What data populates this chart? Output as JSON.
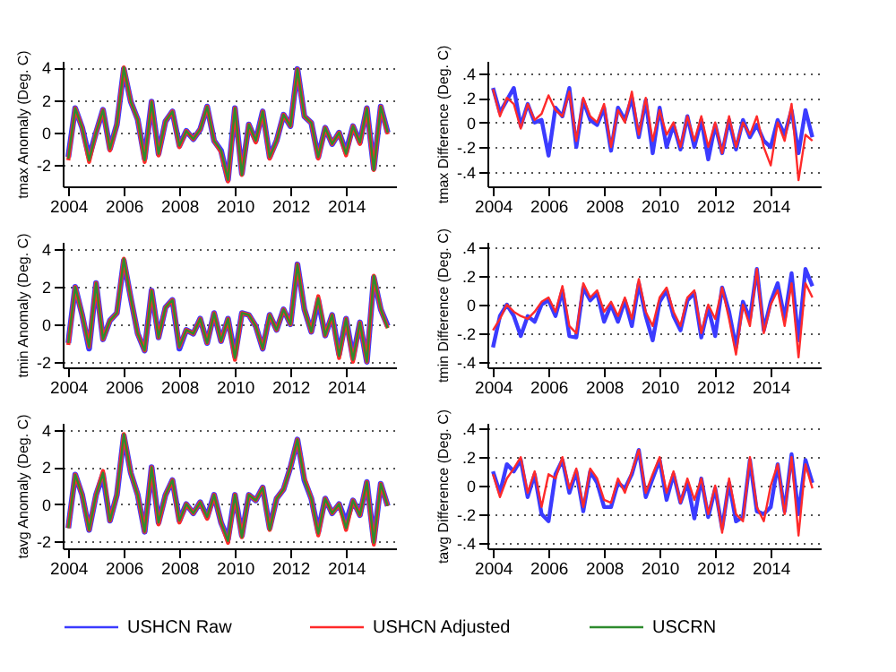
{
  "chart_data": [
    {
      "type": "line",
      "ylabel": "tmax Anomaly (Deg. C)",
      "x": [
        2004,
        2004.25,
        2004.5,
        2004.75,
        2005,
        2005.25,
        2005.5,
        2005.75,
        2006,
        2006.25,
        2006.5,
        2006.75,
        2007,
        2007.25,
        2007.5,
        2007.75,
        2008,
        2008.25,
        2008.5,
        2008.75,
        2009,
        2009.25,
        2009.5,
        2009.75,
        2010,
        2010.25,
        2010.5,
        2010.75,
        2011,
        2011.25,
        2011.5,
        2011.75,
        2012,
        2012.25,
        2012.5,
        2012.75,
        2013,
        2013.25,
        2013.5,
        2013.75,
        2014,
        2014.25,
        2014.5,
        2014.75,
        2015,
        2015.25,
        2015.5
      ],
      "xlim": [
        2003.8,
        2015.8
      ],
      "xticks": [
        2004,
        2006,
        2008,
        2010,
        2012,
        2014
      ],
      "ylim": [
        -3.3,
        4.4
      ],
      "yticks": [
        -2,
        0,
        2,
        4
      ],
      "grid": "y",
      "legend": "bottom",
      "series": [
        {
          "name": "USHCN Raw",
          "color": "#3b3bff",
          "values": [
            -1.5,
            1.5,
            0.3,
            -1.5,
            0.0,
            1.4,
            -1.0,
            0.5,
            3.9,
            1.9,
            0.8,
            -1.6,
            1.9,
            -1.3,
            0.7,
            1.3,
            -0.8,
            0.1,
            -0.4,
            0.2,
            1.6,
            -0.5,
            -1.1,
            -2.9,
            1.5,
            -2.5,
            0.5,
            -0.5,
            1.3,
            -1.5,
            -0.5,
            1.1,
            0.4,
            3.9,
            1.0,
            0.6,
            -1.5,
            0.3,
            -0.7,
            0.0,
            -1.2,
            0.4,
            -0.6,
            1.5,
            -2.2,
            1.6,
            0.0
          ]
        },
        {
          "name": "USHCN Adjusted",
          "color": "#ff2a2a",
          "values": [
            -1.7,
            1.5,
            0.3,
            -1.8,
            0.0,
            1.4,
            -1.1,
            0.5,
            4.0,
            1.9,
            0.8,
            -1.8,
            1.9,
            -1.4,
            0.7,
            1.3,
            -0.9,
            0.1,
            -0.4,
            0.2,
            1.6,
            -0.5,
            -1.2,
            -3.0,
            1.5,
            -2.6,
            0.5,
            -0.6,
            1.3,
            -1.6,
            -0.5,
            1.1,
            0.4,
            3.9,
            1.0,
            0.6,
            -1.6,
            0.3,
            -0.7,
            0.0,
            -1.4,
            0.4,
            -0.7,
            1.5,
            -2.3,
            1.6,
            -0.1
          ]
        },
        {
          "name": "USCRN",
          "color": "#2e8b2e",
          "values": [
            -1.6,
            1.5,
            0.3,
            -1.7,
            0.0,
            1.4,
            -1.0,
            0.5,
            4.0,
            1.9,
            0.8,
            -1.7,
            1.9,
            -1.3,
            0.7,
            1.3,
            -0.8,
            0.1,
            -0.4,
            0.2,
            1.6,
            -0.5,
            -1.1,
            -2.9,
            1.5,
            -2.6,
            0.5,
            -0.5,
            1.3,
            -1.5,
            -0.5,
            1.1,
            0.4,
            3.9,
            1.0,
            0.6,
            -1.5,
            0.3,
            -0.7,
            0.0,
            -1.3,
            0.4,
            -0.6,
            1.5,
            -2.3,
            1.6,
            0.0
          ]
        }
      ]
    },
    {
      "type": "line",
      "ylabel": "tmax Difference (Deg. C)",
      "x": [
        2004,
        2004.25,
        2004.5,
        2004.75,
        2005,
        2005.25,
        2005.5,
        2005.75,
        2006,
        2006.25,
        2006.5,
        2006.75,
        2007,
        2007.25,
        2007.5,
        2007.75,
        2008,
        2008.25,
        2008.5,
        2008.75,
        2009,
        2009.25,
        2009.5,
        2009.75,
        2010,
        2010.25,
        2010.5,
        2010.75,
        2011,
        2011.25,
        2011.5,
        2011.75,
        2012,
        2012.25,
        2012.5,
        2012.75,
        2013,
        2013.25,
        2013.5,
        2013.75,
        2014,
        2014.25,
        2014.5,
        2014.75,
        2015,
        2015.25,
        2015.5
      ],
      "xlim": [
        2003.8,
        2015.8
      ],
      "xticks": [
        2004,
        2006,
        2008,
        2010,
        2012,
        2014
      ],
      "ylim": [
        -0.52,
        0.5
      ],
      "yticks": [
        {
          "value": -0.4,
          "label": "-.4"
        },
        {
          "value": -0.2,
          "label": "-.2"
        },
        0,
        {
          "value": 0.2,
          "label": ".2"
        },
        {
          "value": 0.4,
          "label": ".4"
        }
      ],
      "grid": "y",
      "legend": "bottom",
      "series": [
        {
          "name": "USHCN Raw",
          "color": "#3b3bff",
          "values": [
            0.28,
            0.08,
            0.18,
            0.28,
            -0.03,
            0.15,
            0.0,
            0.02,
            -0.27,
            0.12,
            0.05,
            0.28,
            -0.2,
            0.18,
            0.02,
            -0.02,
            0.12,
            -0.23,
            0.12,
            0.02,
            0.2,
            -0.12,
            0.18,
            -0.25,
            0.12,
            -0.2,
            -0.02,
            -0.22,
            0.05,
            -0.2,
            0.02,
            -0.3,
            -0.02,
            -0.25,
            0.02,
            -0.22,
            0.02,
            -0.12,
            -0.02,
            -0.15,
            -0.2,
            0.02,
            -0.1,
            0.1,
            -0.25,
            0.1,
            -0.12
          ]
        },
        {
          "name": "USHCN Adjusted",
          "color": "#ff2a2a",
          "values": [
            0.27,
            0.05,
            0.2,
            0.15,
            -0.05,
            0.15,
            0.02,
            0.07,
            0.22,
            0.1,
            0.05,
            0.25,
            -0.15,
            0.2,
            0.05,
            0.0,
            0.15,
            -0.2,
            0.1,
            0.0,
            0.25,
            -0.1,
            0.2,
            -0.15,
            0.1,
            -0.1,
            0.0,
            -0.2,
            0.05,
            -0.15,
            0.05,
            -0.2,
            0.0,
            -0.25,
            0.05,
            -0.2,
            0.0,
            -0.1,
            0.05,
            -0.2,
            -0.35,
            0.0,
            -0.15,
            0.15,
            -0.47,
            -0.1,
            -0.15
          ]
        }
      ]
    },
    {
      "type": "line",
      "ylabel": "tmin Anomaly (Deg. C)",
      "x": [
        2004,
        2004.25,
        2004.5,
        2004.75,
        2005,
        2005.25,
        2005.5,
        2005.75,
        2006,
        2006.25,
        2006.5,
        2006.75,
        2007,
        2007.25,
        2007.5,
        2007.75,
        2008,
        2008.25,
        2008.5,
        2008.75,
        2009,
        2009.25,
        2009.5,
        2009.75,
        2010,
        2010.25,
        2010.5,
        2010.75,
        2011,
        2011.25,
        2011.5,
        2011.75,
        2012,
        2012.25,
        2012.5,
        2012.75,
        2013,
        2013.25,
        2013.5,
        2013.75,
        2014,
        2014.25,
        2014.5,
        2014.75,
        2015,
        2015.25,
        2015.5
      ],
      "xlim": [
        2003.8,
        2015.8
      ],
      "xticks": [
        2004,
        2006,
        2008,
        2010,
        2012,
        2014
      ],
      "ylim": [
        -2.3,
        4.4
      ],
      "yticks": [
        -2,
        0,
        2,
        4
      ],
      "grid": "y",
      "legend": "bottom",
      "series": [
        {
          "name": "USHCN Raw",
          "color": "#3b3bff",
          "values": [
            -1.0,
            2.0,
            0.5,
            -1.3,
            2.2,
            -0.8,
            0.2,
            0.6,
            3.4,
            1.4,
            -0.5,
            -1.4,
            1.8,
            -0.7,
            0.9,
            1.3,
            -1.3,
            -0.3,
            -0.5,
            0.3,
            -1.0,
            0.6,
            -0.9,
            0.3,
            -1.7,
            0.6,
            0.5,
            -0.1,
            -1.3,
            0.5,
            -0.3,
            0.8,
            0.0,
            3.2,
            0.8,
            -0.4,
            1.3,
            -0.6,
            0.5,
            -1.6,
            0.3,
            -1.8,
            0.1,
            -2.0,
            2.5,
            0.8,
            -0.1
          ]
        },
        {
          "name": "USHCN Adjusted",
          "color": "#ff2a2a",
          "values": [
            -1.1,
            2.0,
            0.5,
            -1.2,
            2.2,
            -0.8,
            0.2,
            0.6,
            3.5,
            1.4,
            -0.5,
            -1.4,
            1.8,
            -0.7,
            0.9,
            1.3,
            -1.2,
            -0.3,
            -0.5,
            0.3,
            -1.0,
            0.6,
            -0.9,
            0.3,
            -1.9,
            0.6,
            0.5,
            -0.1,
            -1.3,
            0.5,
            -0.3,
            0.8,
            0.0,
            3.2,
            0.8,
            -0.4,
            1.5,
            -0.6,
            0.5,
            -1.8,
            0.3,
            -2.0,
            0.1,
            -2.0,
            2.6,
            0.8,
            -0.2
          ]
        },
        {
          "name": "USCRN",
          "color": "#2e8b2e",
          "values": [
            -1.0,
            2.0,
            0.5,
            -1.2,
            2.2,
            -0.8,
            0.2,
            0.6,
            3.5,
            1.4,
            -0.5,
            -1.4,
            1.8,
            -0.7,
            0.9,
            1.3,
            -1.2,
            -0.3,
            -0.5,
            0.3,
            -1.0,
            0.6,
            -0.9,
            0.3,
            -1.8,
            0.6,
            0.5,
            -0.1,
            -1.3,
            0.5,
            -0.3,
            0.8,
            0.0,
            3.2,
            0.8,
            -0.4,
            1.4,
            -0.6,
            0.5,
            -1.7,
            0.3,
            -1.9,
            0.1,
            -2.0,
            2.6,
            0.8,
            -0.2
          ]
        }
      ]
    },
    {
      "type": "line",
      "ylabel": "tmin Difference (Deg. C)",
      "x": [
        2004,
        2004.25,
        2004.5,
        2004.75,
        2005,
        2005.25,
        2005.5,
        2005.75,
        2006,
        2006.25,
        2006.5,
        2006.75,
        2007,
        2007.25,
        2007.5,
        2007.75,
        2008,
        2008.25,
        2008.5,
        2008.75,
        2009,
        2009.25,
        2009.5,
        2009.75,
        2010,
        2010.25,
        2010.5,
        2010.75,
        2011,
        2011.25,
        2011.5,
        2011.75,
        2012,
        2012.25,
        2012.5,
        2012.75,
        2013,
        2013.25,
        2013.5,
        2013.75,
        2014,
        2014.25,
        2014.5,
        2014.75,
        2015,
        2015.25,
        2015.5
      ],
      "xlim": [
        2003.8,
        2015.8
      ],
      "xticks": [
        2004,
        2006,
        2008,
        2010,
        2012,
        2014
      ],
      "ylim": [
        -0.44,
        0.44
      ],
      "yticks": [
        {
          "value": -0.4,
          "label": "-.4"
        },
        {
          "value": -0.2,
          "label": "-.2"
        },
        0,
        {
          "value": 0.2,
          "label": ".2"
        },
        {
          "value": 0.4,
          "label": ".4"
        }
      ],
      "grid": "y",
      "legend": "bottom",
      "series": [
        {
          "name": "USHCN Raw",
          "color": "#3b3bff",
          "values": [
            -0.3,
            -0.08,
            0.0,
            -0.08,
            -0.22,
            -0.08,
            -0.12,
            0.0,
            0.03,
            -0.08,
            0.1,
            -0.22,
            -0.23,
            0.12,
            0.03,
            0.08,
            -0.12,
            0.0,
            -0.12,
            0.03,
            -0.15,
            0.15,
            -0.08,
            -0.25,
            0.02,
            0.1,
            -0.08,
            -0.18,
            0.03,
            0.08,
            -0.23,
            -0.02,
            -0.22,
            0.12,
            -0.05,
            -0.3,
            0.02,
            -0.1,
            0.25,
            -0.18,
            0.02,
            0.15,
            -0.1,
            0.22,
            -0.25,
            0.25,
            0.13
          ]
        },
        {
          "name": "USHCN Adjusted",
          "color": "#ff2a2a",
          "values": [
            -0.18,
            -0.1,
            0.0,
            -0.05,
            -0.08,
            -0.1,
            -0.05,
            0.02,
            0.05,
            -0.05,
            0.13,
            -0.15,
            -0.2,
            0.15,
            0.05,
            0.1,
            -0.05,
            0.02,
            -0.08,
            0.05,
            -0.1,
            0.18,
            -0.05,
            -0.15,
            0.05,
            0.12,
            -0.05,
            -0.15,
            0.05,
            0.1,
            -0.2,
            0.0,
            -0.1,
            0.12,
            -0.1,
            -0.35,
            0.0,
            -0.15,
            0.25,
            -0.2,
            0.0,
            0.1,
            -0.15,
            0.15,
            -0.37,
            0.15,
            0.05
          ]
        }
      ]
    },
    {
      "type": "line",
      "ylabel": "tavg Anomaly (Deg. C)",
      "x": [
        2004,
        2004.25,
        2004.5,
        2004.75,
        2005,
        2005.25,
        2005.5,
        2005.75,
        2006,
        2006.25,
        2006.5,
        2006.75,
        2007,
        2007.25,
        2007.5,
        2007.75,
        2008,
        2008.25,
        2008.5,
        2008.75,
        2009,
        2009.25,
        2009.5,
        2009.75,
        2010,
        2010.25,
        2010.5,
        2010.75,
        2011,
        2011.25,
        2011.5,
        2011.75,
        2012,
        2012.25,
        2012.5,
        2012.75,
        2013,
        2013.25,
        2013.5,
        2013.75,
        2014,
        2014.25,
        2014.5,
        2014.75,
        2015,
        2015.25,
        2015.5
      ],
      "xlim": [
        2003.8,
        2015.8
      ],
      "xticks": [
        2004,
        2006,
        2008,
        2010,
        2012,
        2014
      ],
      "ylim": [
        -2.4,
        4.4
      ],
      "yticks": [
        -2,
        0,
        2,
        4
      ],
      "grid": "y",
      "legend": "bottom",
      "series": [
        {
          "name": "USHCN Raw",
          "color": "#3b3bff",
          "values": [
            -1.3,
            1.6,
            0.5,
            -1.4,
            0.5,
            1.6,
            -0.9,
            0.5,
            3.7,
            1.7,
            0.5,
            -1.5,
            2.0,
            -1.0,
            0.5,
            1.3,
            -0.9,
            0.0,
            -0.5,
            0.1,
            -0.7,
            0.5,
            -1.0,
            -1.9,
            0.5,
            -1.7,
            0.5,
            0.2,
            0.9,
            -1.3,
            0.3,
            0.8,
            2.0,
            3.5,
            1.3,
            0.3,
            -1.5,
            0.3,
            -0.5,
            0.0,
            -1.0,
            0.2,
            -0.6,
            1.2,
            -2.0,
            1.1,
            -0.1
          ]
        },
        {
          "name": "USHCN Adjusted",
          "color": "#ff2a2a",
          "values": [
            -1.3,
            1.6,
            0.5,
            -1.4,
            0.5,
            1.8,
            -0.9,
            0.5,
            3.8,
            1.7,
            0.5,
            -1.5,
            2.0,
            -1.1,
            0.5,
            1.3,
            -1.0,
            0.0,
            -0.5,
            0.1,
            -0.8,
            0.5,
            -1.0,
            -2.1,
            0.5,
            -1.8,
            0.5,
            0.2,
            0.9,
            -1.4,
            0.3,
            0.8,
            2.0,
            3.5,
            1.4,
            0.3,
            -1.7,
            0.3,
            -0.5,
            0.0,
            -1.4,
            0.2,
            -0.6,
            1.2,
            -2.2,
            1.1,
            -0.1
          ]
        },
        {
          "name": "USCRN",
          "color": "#2e8b2e",
          "values": [
            -1.3,
            1.6,
            0.5,
            -1.4,
            0.5,
            1.7,
            -0.9,
            0.5,
            3.8,
            1.7,
            0.5,
            -1.5,
            2.0,
            -1.0,
            0.5,
            1.3,
            -0.9,
            0.0,
            -0.5,
            0.1,
            -0.7,
            0.5,
            -1.0,
            -2.0,
            0.5,
            -1.8,
            0.5,
            0.2,
            0.9,
            -1.4,
            0.3,
            0.8,
            2.0,
            3.5,
            1.3,
            0.3,
            -1.6,
            0.3,
            -0.5,
            0.0,
            -1.3,
            0.2,
            -0.6,
            1.2,
            -2.1,
            1.1,
            -0.1
          ]
        }
      ]
    },
    {
      "type": "line",
      "ylabel": "tavg Difference (Deg. C)",
      "x": [
        2004,
        2004.25,
        2004.5,
        2004.75,
        2005,
        2005.25,
        2005.5,
        2005.75,
        2006,
        2006.25,
        2006.5,
        2006.75,
        2007,
        2007.25,
        2007.5,
        2007.75,
        2008,
        2008.25,
        2008.5,
        2008.75,
        2009,
        2009.25,
        2009.5,
        2009.75,
        2010,
        2010.25,
        2010.5,
        2010.75,
        2011,
        2011.25,
        2011.5,
        2011.75,
        2012,
        2012.25,
        2012.5,
        2012.75,
        2013,
        2013.25,
        2013.5,
        2013.75,
        2014,
        2014.25,
        2014.5,
        2014.75,
        2015,
        2015.25,
        2015.5
      ],
      "xlim": [
        2003.8,
        2015.8
      ],
      "xticks": [
        2004,
        2006,
        2008,
        2010,
        2012,
        2014
      ],
      "ylim": [
        -0.44,
        0.44
      ],
      "yticks": [
        {
          "value": -0.4,
          "label": "-.4"
        },
        {
          "value": -0.2,
          "label": "-.2"
        },
        0,
        {
          "value": 0.2,
          "label": ".2"
        },
        {
          "value": 0.4,
          "label": ".4"
        }
      ],
      "grid": "y",
      "legend": "bottom",
      "series": [
        {
          "name": "USHCN Raw",
          "color": "#3b3bff",
          "values": [
            0.1,
            -0.05,
            0.15,
            0.1,
            0.18,
            -0.08,
            0.08,
            -0.2,
            -0.25,
            0.08,
            0.18,
            -0.05,
            0.1,
            -0.18,
            0.1,
            0.02,
            -0.15,
            -0.15,
            0.02,
            -0.02,
            0.08,
            0.25,
            -0.08,
            0.05,
            0.18,
            -0.1,
            0.08,
            -0.12,
            0.02,
            -0.23,
            0.05,
            -0.22,
            -0.02,
            -0.3,
            0.02,
            -0.25,
            -0.22,
            0.18,
            -0.18,
            -0.2,
            -0.15,
            0.15,
            -0.18,
            0.22,
            -0.2,
            0.18,
            0.02
          ]
        },
        {
          "name": "USHCN Adjusted",
          "color": "#ff2a2a",
          "values": [
            0.08,
            -0.08,
            0.05,
            0.12,
            0.2,
            -0.05,
            0.1,
            -0.15,
            0.08,
            0.05,
            0.2,
            -0.02,
            0.12,
            -0.15,
            0.12,
            0.05,
            -0.1,
            -0.12,
            0.05,
            -0.05,
            0.1,
            0.25,
            -0.05,
            0.08,
            0.2,
            -0.05,
            0.1,
            -0.12,
            0.05,
            -0.1,
            0.05,
            -0.2,
            0.0,
            -0.33,
            0.05,
            -0.2,
            -0.25,
            0.2,
            -0.15,
            -0.25,
            0.0,
            0.15,
            -0.2,
            0.2,
            -0.35,
            0.15,
            -0.02
          ]
        }
      ]
    }
  ]
}
